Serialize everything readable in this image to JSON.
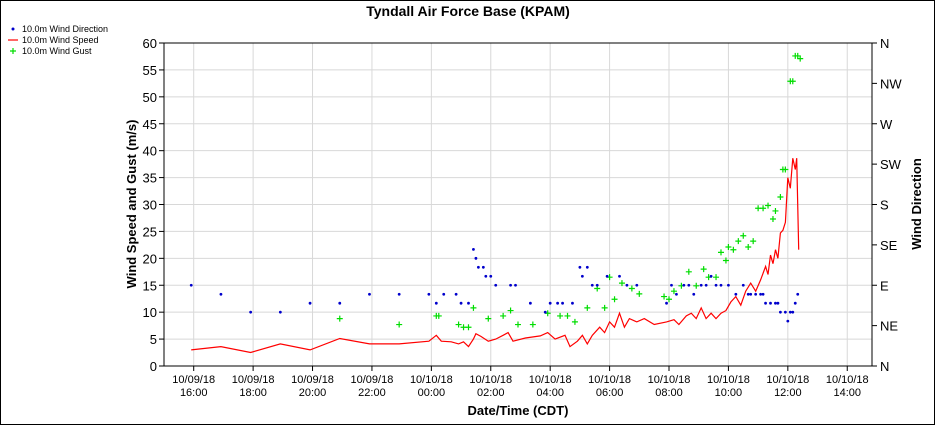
{
  "chart_data": {
    "type": "scatter",
    "title": "Tyndall Air Force Base (KPAM)",
    "xlabel": "Date/Time (CDT)",
    "ylabel": "Wind Speed and Gust (m/s)",
    "y2label": "Wind Direction",
    "ylim": [
      0,
      60
    ],
    "y2lim": [
      0,
      360
    ],
    "xlim": [
      "2018-10-09 15:00",
      "2018-10-10 14:50"
    ],
    "grid": true,
    "legend_placement": "top-left",
    "y_ticks": [
      "0",
      "5",
      "10",
      "15",
      "20",
      "25",
      "30",
      "35",
      "40",
      "45",
      "50",
      "55",
      "60"
    ],
    "y2_ticks": [
      "N",
      "NE",
      "E",
      "SE",
      "S",
      "SW",
      "W",
      "NW",
      "N"
    ],
    "x_ticks": [
      {
        "time": "2018-10-09 16:00",
        "date": "10/09/18",
        "clock": "16:00"
      },
      {
        "time": "2018-10-09 18:00",
        "date": "10/09/18",
        "clock": "18:00"
      },
      {
        "time": "2018-10-09 20:00",
        "date": "10/09/18",
        "clock": "20:00"
      },
      {
        "time": "2018-10-09 22:00",
        "date": "10/09/18",
        "clock": "22:00"
      },
      {
        "time": "2018-10-10 00:00",
        "date": "10/10/18",
        "clock": "00:00"
      },
      {
        "time": "2018-10-10 02:00",
        "date": "10/10/18",
        "clock": "02:00"
      },
      {
        "time": "2018-10-10 04:00",
        "date": "10/10/18",
        "clock": "04:00"
      },
      {
        "time": "2018-10-10 06:00",
        "date": "10/10/18",
        "clock": "06:00"
      },
      {
        "time": "2018-10-10 08:00",
        "date": "10/10/18",
        "clock": "08:00"
      },
      {
        "time": "2018-10-10 10:00",
        "date": "10/10/18",
        "clock": "10:00"
      },
      {
        "time": "2018-10-10 12:00",
        "date": "10/10/18",
        "clock": "12:00"
      },
      {
        "time": "2018-10-10 14:00",
        "date": "10/10/18",
        "clock": "14:00"
      }
    ],
    "colors": {
      "direction": "#0000cc",
      "speed": "#ff0000",
      "gust": "#00dd00"
    },
    "series": [
      {
        "name": "10.0m Wind Direction",
        "type": "scatter",
        "axis": "y2",
        "marker": "dot",
        "points": [
          [
            "2018-10-09 15:55",
            90
          ],
          [
            "2018-10-09 16:55",
            80
          ],
          [
            "2018-10-09 17:55",
            60
          ],
          [
            "2018-10-09 18:55",
            60
          ],
          [
            "2018-10-09 19:55",
            70
          ],
          [
            "2018-10-09 20:55",
            70
          ],
          [
            "2018-10-09 21:55",
            80
          ],
          [
            "2018-10-09 22:55",
            80
          ],
          [
            "2018-10-09 23:55",
            80
          ],
          [
            "2018-10-10 00:10",
            70
          ],
          [
            "2018-10-10 00:25",
            80
          ],
          [
            "2018-10-10 00:50",
            80
          ],
          [
            "2018-10-10 01:00",
            70
          ],
          [
            "2018-10-10 01:15",
            70
          ],
          [
            "2018-10-10 01:25",
            130
          ],
          [
            "2018-10-10 01:30",
            120
          ],
          [
            "2018-10-10 01:35",
            110
          ],
          [
            "2018-10-10 01:45",
            110
          ],
          [
            "2018-10-10 01:50",
            100
          ],
          [
            "2018-10-10 02:00",
            100
          ],
          [
            "2018-10-10 02:10",
            90
          ],
          [
            "2018-10-10 02:40",
            90
          ],
          [
            "2018-10-10 02:50",
            90
          ],
          [
            "2018-10-10 03:20",
            70
          ],
          [
            "2018-10-10 03:50",
            60
          ],
          [
            "2018-10-10 04:00",
            70
          ],
          [
            "2018-10-10 04:15",
            70
          ],
          [
            "2018-10-10 04:25",
            70
          ],
          [
            "2018-10-10 04:45",
            70
          ],
          [
            "2018-10-10 05:00",
            110
          ],
          [
            "2018-10-10 05:05",
            100
          ],
          [
            "2018-10-10 05:15",
            110
          ],
          [
            "2018-10-10 05:25",
            90
          ],
          [
            "2018-10-10 05:35",
            90
          ],
          [
            "2018-10-10 05:55",
            100
          ],
          [
            "2018-10-10 06:20",
            100
          ],
          [
            "2018-10-10 06:35",
            90
          ],
          [
            "2018-10-10 06:55",
            90
          ],
          [
            "2018-10-10 07:55",
            70
          ],
          [
            "2018-10-10 08:05",
            90
          ],
          [
            "2018-10-10 08:15",
            80
          ],
          [
            "2018-10-10 08:30",
            90
          ],
          [
            "2018-10-10 08:40",
            90
          ],
          [
            "2018-10-10 08:50",
            80
          ],
          [
            "2018-10-10 09:05",
            90
          ],
          [
            "2018-10-10 09:15",
            90
          ],
          [
            "2018-10-10 09:25",
            100
          ],
          [
            "2018-10-10 09:35",
            90
          ],
          [
            "2018-10-10 09:45",
            90
          ],
          [
            "2018-10-10 10:00",
            90
          ],
          [
            "2018-10-10 10:15",
            80
          ],
          [
            "2018-10-10 10:30",
            90
          ],
          [
            "2018-10-10 10:40",
            80
          ],
          [
            "2018-10-10 10:45",
            80
          ],
          [
            "2018-10-10 10:55",
            80
          ],
          [
            "2018-10-10 11:05",
            80
          ],
          [
            "2018-10-10 11:10",
            80
          ],
          [
            "2018-10-10 11:15",
            70
          ],
          [
            "2018-10-10 11:25",
            70
          ],
          [
            "2018-10-10 11:35",
            70
          ],
          [
            "2018-10-10 11:40",
            70
          ],
          [
            "2018-10-10 11:45",
            60
          ],
          [
            "2018-10-10 11:55",
            60
          ],
          [
            "2018-10-10 12:00",
            50
          ],
          [
            "2018-10-10 12:05",
            60
          ],
          [
            "2018-10-10 12:10",
            60
          ],
          [
            "2018-10-10 12:15",
            70
          ],
          [
            "2018-10-10 12:20",
            80
          ]
        ]
      },
      {
        "name": "10.0m Wind Speed",
        "type": "line",
        "axis": "y",
        "points": [
          [
            "2018-10-09 15:55",
            3.0
          ],
          [
            "2018-10-09 16:55",
            3.6
          ],
          [
            "2018-10-09 17:55",
            2.5
          ],
          [
            "2018-10-09 18:55",
            4.1
          ],
          [
            "2018-10-09 19:55",
            3.0
          ],
          [
            "2018-10-09 20:55",
            5.1
          ],
          [
            "2018-10-09 21:55",
            4.1
          ],
          [
            "2018-10-09 22:55",
            4.1
          ],
          [
            "2018-10-09 23:55",
            4.6
          ],
          [
            "2018-10-10 00:10",
            5.7
          ],
          [
            "2018-10-10 00:20",
            4.6
          ],
          [
            "2018-10-10 00:40",
            4.5
          ],
          [
            "2018-10-10 00:55",
            4.1
          ],
          [
            "2018-10-10 01:05",
            4.5
          ],
          [
            "2018-10-10 01:15",
            3.6
          ],
          [
            "2018-10-10 01:25",
            5.0
          ],
          [
            "2018-10-10 01:30",
            6.0
          ],
          [
            "2018-10-10 01:40",
            5.5
          ],
          [
            "2018-10-10 01:55",
            4.6
          ],
          [
            "2018-10-10 02:10",
            5.0
          ],
          [
            "2018-10-10 02:25",
            5.7
          ],
          [
            "2018-10-10 02:35",
            6.2
          ],
          [
            "2018-10-10 02:45",
            4.6
          ],
          [
            "2018-10-10 03:10",
            5.2
          ],
          [
            "2018-10-10 03:40",
            5.6
          ],
          [
            "2018-10-10 03:55",
            6.2
          ],
          [
            "2018-10-10 04:10",
            5.0
          ],
          [
            "2018-10-10 04:30",
            5.7
          ],
          [
            "2018-10-10 04:40",
            3.6
          ],
          [
            "2018-10-10 04:55",
            4.6
          ],
          [
            "2018-10-10 05:05",
            5.7
          ],
          [
            "2018-10-10 05:15",
            4.1
          ],
          [
            "2018-10-10 05:25",
            5.7
          ],
          [
            "2018-10-10 05:40",
            7.2
          ],
          [
            "2018-10-10 05:50",
            6.2
          ],
          [
            "2018-10-10 06:00",
            8.2
          ],
          [
            "2018-10-10 06:10",
            7.2
          ],
          [
            "2018-10-10 06:20",
            9.8
          ],
          [
            "2018-10-10 06:30",
            7.2
          ],
          [
            "2018-10-10 06:40",
            8.8
          ],
          [
            "2018-10-10 06:55",
            8.2
          ],
          [
            "2018-10-10 07:10",
            8.8
          ],
          [
            "2018-10-10 07:30",
            7.7
          ],
          [
            "2018-10-10 07:55",
            8.2
          ],
          [
            "2018-10-10 08:10",
            8.6
          ],
          [
            "2018-10-10 08:20",
            7.7
          ],
          [
            "2018-10-10 08:35",
            9.3
          ],
          [
            "2018-10-10 08:45",
            9.8
          ],
          [
            "2018-10-10 08:55",
            8.8
          ],
          [
            "2018-10-10 09:05",
            10.8
          ],
          [
            "2018-10-10 09:15",
            8.8
          ],
          [
            "2018-10-10 09:25",
            9.8
          ],
          [
            "2018-10-10 09:35",
            8.8
          ],
          [
            "2018-10-10 09:45",
            9.8
          ],
          [
            "2018-10-10 09:55",
            10.3
          ],
          [
            "2018-10-10 10:05",
            11.9
          ],
          [
            "2018-10-10 10:15",
            12.9
          ],
          [
            "2018-10-10 10:25",
            11.3
          ],
          [
            "2018-10-10 10:35",
            13.9
          ],
          [
            "2018-10-10 10:45",
            15.4
          ],
          [
            "2018-10-10 10:55",
            13.9
          ],
          [
            "2018-10-10 11:05",
            16.0
          ],
          [
            "2018-10-10 11:15",
            18.5
          ],
          [
            "2018-10-10 11:20",
            17.0
          ],
          [
            "2018-10-10 11:25",
            20.6
          ],
          [
            "2018-10-10 11:30",
            19.0
          ],
          [
            "2018-10-10 11:35",
            21.6
          ],
          [
            "2018-10-10 11:40",
            20.0
          ],
          [
            "2018-10-10 11:45",
            24.7
          ],
          [
            "2018-10-10 11:50",
            25.2
          ],
          [
            "2018-10-10 11:55",
            26.7
          ],
          [
            "2018-10-10 12:00",
            35.0
          ],
          [
            "2018-10-10 12:05",
            33.0
          ],
          [
            "2018-10-10 12:10",
            38.6
          ],
          [
            "2018-10-10 12:15",
            36.5
          ],
          [
            "2018-10-10 12:18",
            38.6
          ],
          [
            "2018-10-10 12:22",
            21.6
          ]
        ]
      },
      {
        "name": "10.0m Wind Gust",
        "type": "scatter",
        "axis": "y",
        "marker": "plus",
        "points": [
          [
            "2018-10-09 20:55",
            8.8
          ],
          [
            "2018-10-09 22:55",
            7.7
          ],
          [
            "2018-10-10 00:10",
            9.3
          ],
          [
            "2018-10-10 00:15",
            9.3
          ],
          [
            "2018-10-10 00:55",
            7.7
          ],
          [
            "2018-10-10 01:05",
            7.2
          ],
          [
            "2018-10-10 01:15",
            7.2
          ],
          [
            "2018-10-10 01:25",
            10.8
          ],
          [
            "2018-10-10 01:55",
            8.8
          ],
          [
            "2018-10-10 02:25",
            9.3
          ],
          [
            "2018-10-10 02:40",
            10.3
          ],
          [
            "2018-10-10 02:55",
            7.7
          ],
          [
            "2018-10-10 03:25",
            7.7
          ],
          [
            "2018-10-10 03:55",
            9.8
          ],
          [
            "2018-10-10 04:20",
            9.3
          ],
          [
            "2018-10-10 04:35",
            9.3
          ],
          [
            "2018-10-10 04:50",
            8.2
          ],
          [
            "2018-10-10 05:15",
            10.8
          ],
          [
            "2018-10-10 05:35",
            14.4
          ],
          [
            "2018-10-10 05:50",
            10.8
          ],
          [
            "2018-10-10 06:00",
            16.5
          ],
          [
            "2018-10-10 06:10",
            12.4
          ],
          [
            "2018-10-10 06:25",
            15.4
          ],
          [
            "2018-10-10 06:45",
            14.4
          ],
          [
            "2018-10-10 07:00",
            13.4
          ],
          [
            "2018-10-10 07:50",
            12.9
          ],
          [
            "2018-10-10 08:00",
            12.4
          ],
          [
            "2018-10-10 08:10",
            13.9
          ],
          [
            "2018-10-10 08:25",
            14.9
          ],
          [
            "2018-10-10 08:40",
            17.5
          ],
          [
            "2018-10-10 08:55",
            14.9
          ],
          [
            "2018-10-10 09:10",
            18.0
          ],
          [
            "2018-10-10 09:20",
            16.5
          ],
          [
            "2018-10-10 09:35",
            16.5
          ],
          [
            "2018-10-10 09:45",
            21.1
          ],
          [
            "2018-10-10 09:55",
            19.6
          ],
          [
            "2018-10-10 10:00",
            22.1
          ],
          [
            "2018-10-10 10:10",
            21.6
          ],
          [
            "2018-10-10 10:20",
            23.2
          ],
          [
            "2018-10-10 10:30",
            24.2
          ],
          [
            "2018-10-10 10:40",
            22.1
          ],
          [
            "2018-10-10 10:50",
            23.2
          ],
          [
            "2018-10-10 11:00",
            29.3
          ],
          [
            "2018-10-10 11:10",
            29.3
          ],
          [
            "2018-10-10 11:20",
            29.8
          ],
          [
            "2018-10-10 11:30",
            27.3
          ],
          [
            "2018-10-10 11:35",
            28.8
          ],
          [
            "2018-10-10 11:45",
            31.4
          ],
          [
            "2018-10-10 11:50",
            36.5
          ],
          [
            "2018-10-10 11:55",
            36.5
          ],
          [
            "2018-10-10 12:05",
            52.9
          ],
          [
            "2018-10-10 12:10",
            52.9
          ],
          [
            "2018-10-10 12:15",
            57.6
          ],
          [
            "2018-10-10 12:20",
            57.6
          ],
          [
            "2018-10-10 12:25",
            57.1
          ]
        ]
      }
    ]
  }
}
